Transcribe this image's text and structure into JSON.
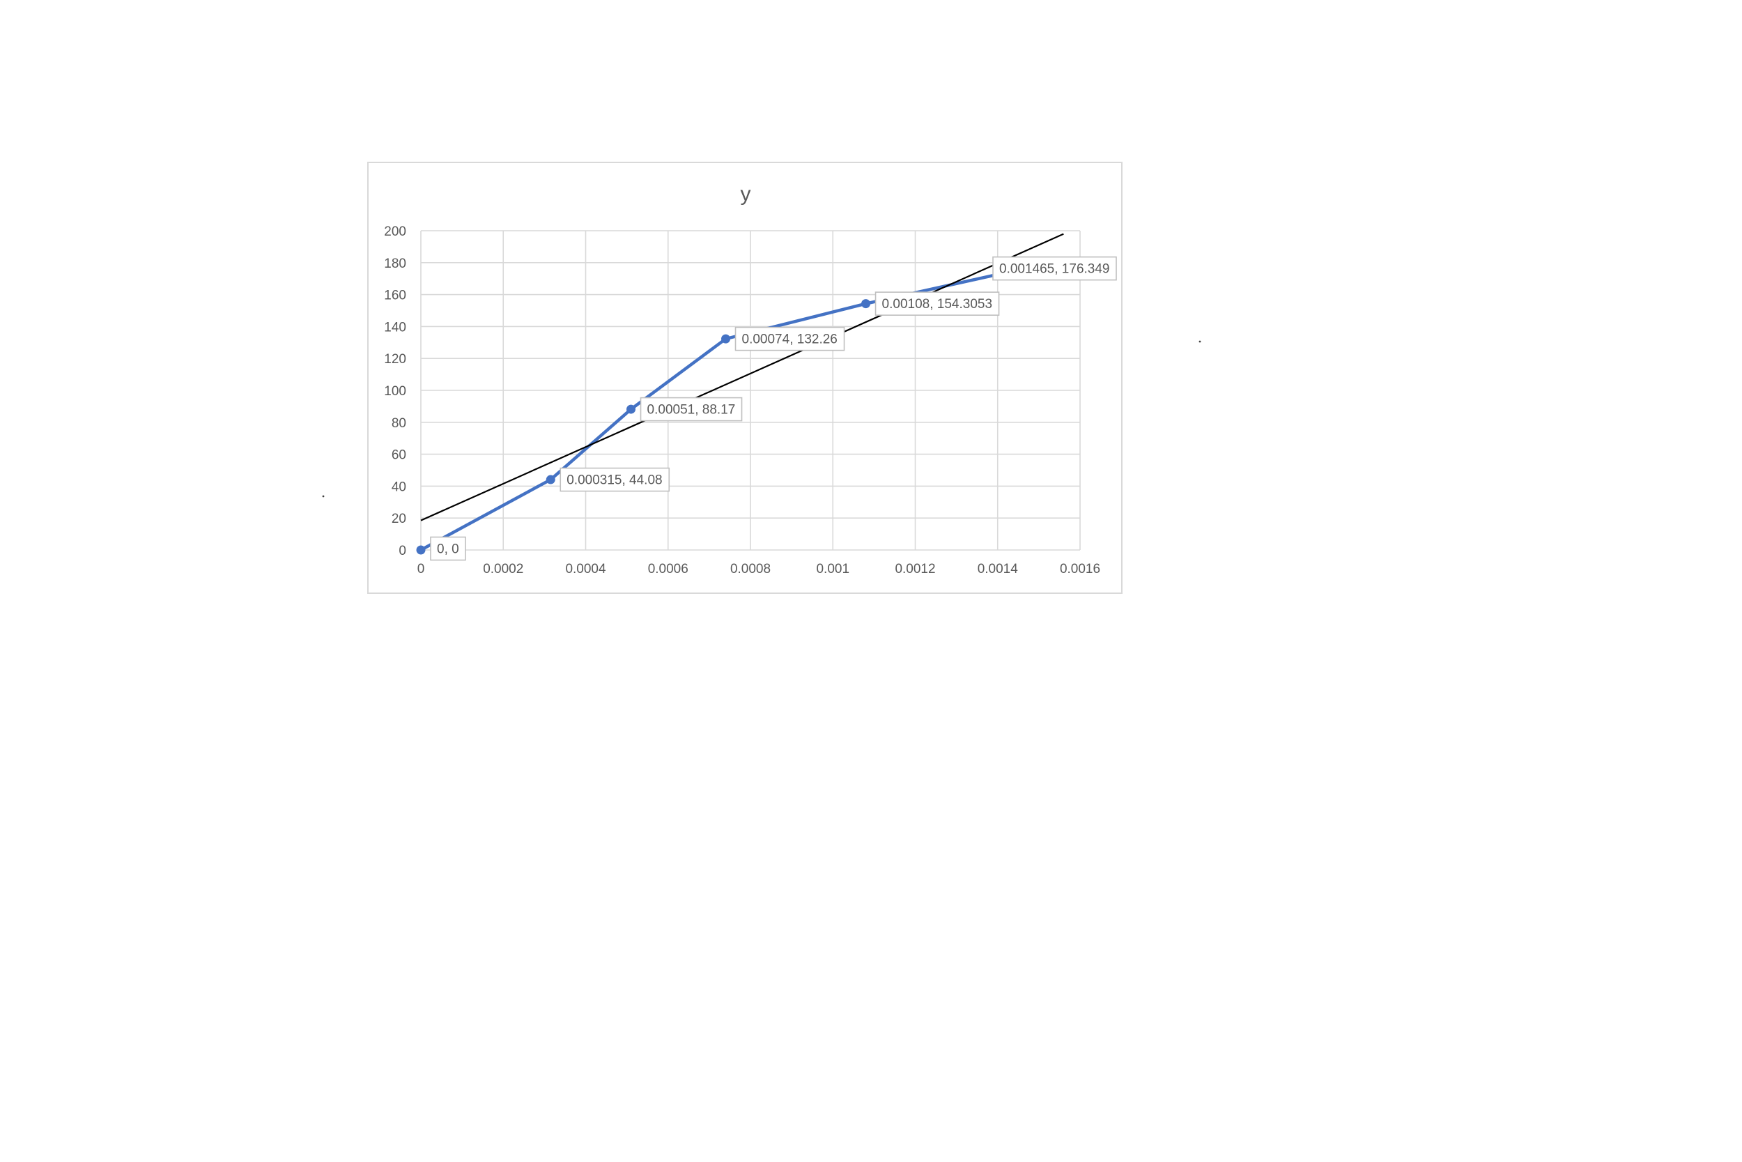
{
  "chart_data": {
    "type": "scatter",
    "title": "y",
    "xlabel": "",
    "ylabel": "",
    "xlim": [
      0,
      0.0016
    ],
    "ylim": [
      0,
      200
    ],
    "x_ticks": [
      "0",
      "0.0002",
      "0.0004",
      "0.0006",
      "0.0008",
      "0.001",
      "0.0012",
      "0.0014",
      "0.0016"
    ],
    "y_ticks": [
      "0",
      "20",
      "40",
      "60",
      "80",
      "100",
      "120",
      "140",
      "160",
      "180",
      "200"
    ],
    "grid": true,
    "legend": "none",
    "series": [
      {
        "x": [
          0,
          0.000315,
          0.00051,
          0.00074,
          0.00108,
          0.001465
        ],
        "y": [
          0,
          44.08,
          88.17,
          132.26,
          154.3053,
          176.349
        ],
        "data_labels": [
          "0, 0",
          "0.000315, 44.08",
          "0.00051, 88.17",
          "0.00074, 132.26",
          "0.00108, 154.3053",
          "0.001465, 176.349"
        ],
        "style": "line-with-markers",
        "color": "#4472c4"
      }
    ],
    "trendline": {
      "type": "linear",
      "x": [
        0,
        0.00156
      ],
      "y": [
        18.5,
        198
      ],
      "color": "#000000"
    }
  }
}
